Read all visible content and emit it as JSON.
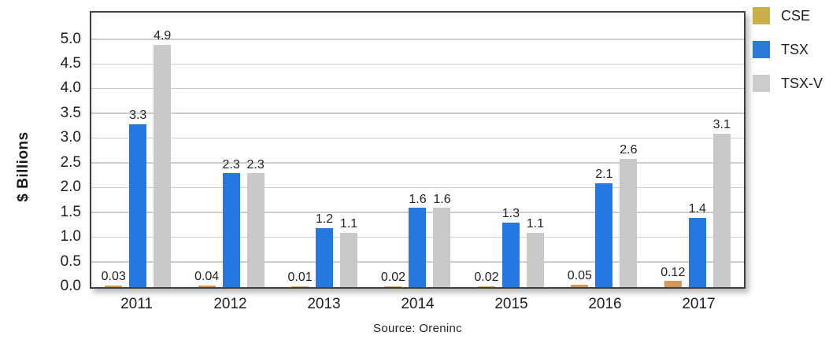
{
  "chart_data": {
    "type": "bar",
    "title": "",
    "ylabel": "$ Billions",
    "xlabel": "",
    "source": "Source: Oreninc",
    "grid": true,
    "legend_position": "top-right",
    "categories": [
      "2011",
      "2012",
      "2013",
      "2014",
      "2015",
      "2016",
      "2017"
    ],
    "series": [
      {
        "name": "CSE",
        "values": [
          0.03,
          0.04,
          0.01,
          0.02,
          0.02,
          0.05,
          0.12
        ],
        "labels": [
          "0.03",
          "0.04",
          "0.01",
          "0.02",
          "0.02",
          "0.05",
          "0.12"
        ],
        "bar_color": "#d2995c",
        "legend_color": "#c9ae4a"
      },
      {
        "name": "TSX",
        "values": [
          3.3,
          2.3,
          1.2,
          1.6,
          1.3,
          2.1,
          1.4
        ],
        "labels": [
          "3.3",
          "2.3",
          "1.2",
          "1.6",
          "1.3",
          "2.1",
          "1.4"
        ],
        "bar_color": "#2578e2",
        "legend_color": "#2b7ad8"
      },
      {
        "name": "TSX-V",
        "values": [
          4.9,
          2.3,
          1.1,
          1.6,
          1.1,
          2.6,
          3.1
        ],
        "labels": [
          "4.9",
          "2.3",
          "1.1",
          "1.6",
          "1.1",
          "2.6",
          "3.1"
        ],
        "bar_color": "#c9c9c9",
        "legend_color": "#cccccc"
      }
    ],
    "y_axis": {
      "min": 0.0,
      "max_tick": 5.0,
      "plot_top_value": 5.55,
      "tick_step": 0.5,
      "tick_labels": [
        "0.0",
        "0.5",
        "1.0",
        "1.5",
        "2.0",
        "2.5",
        "3.0",
        "3.5",
        "4.0",
        "4.5",
        "5.0"
      ]
    }
  }
}
